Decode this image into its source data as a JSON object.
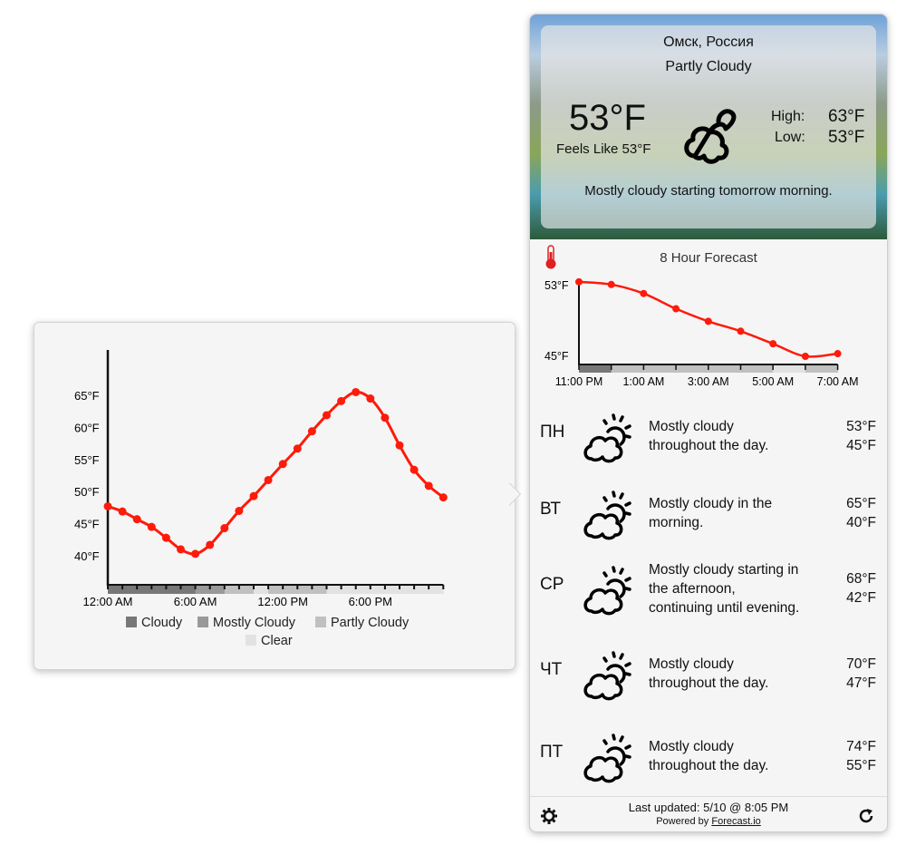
{
  "popover": {
    "chart_data": {
      "type": "line",
      "title": "",
      "xlabel": "",
      "ylabel": "",
      "x": [
        "12:00 AM",
        "1:00 AM",
        "2:00 AM",
        "3:00 AM",
        "4:00 AM",
        "5:00 AM",
        "6:00 AM",
        "7:00 AM",
        "8:00 AM",
        "9:00 AM",
        "10:00 AM",
        "11:00 AM",
        "12:00 PM",
        "1:00 PM",
        "2:00 PM",
        "3:00 PM",
        "4:00 PM",
        "5:00 PM",
        "6:00 PM",
        "7:00 PM",
        "8:00 PM",
        "9:00 PM",
        "10:00 PM",
        "11:00 PM"
      ],
      "values": [
        47.7,
        46.9,
        45.7,
        44.5,
        42.8,
        41.0,
        40.3,
        41.7,
        44.3,
        47.0,
        49.3,
        51.8,
        54.3,
        56.7,
        59.4,
        61.9,
        64.1,
        65.5,
        64.5,
        61.5,
        57.2,
        53.4,
        50.9,
        49.1
      ],
      "conditions": [
        "Cloudy",
        "Cloudy",
        "Cloudy",
        "Cloudy",
        "Cloudy",
        "Cloudy",
        "Mostly Cloudy",
        "Mostly Cloudy",
        "Partly Cloudy",
        "Partly Cloudy",
        "Clear",
        "Partly Cloudy",
        "Partly Cloudy",
        "Partly Cloudy",
        "Partly Cloudy",
        "Clear",
        "Clear",
        "Clear",
        "Clear",
        "Clear",
        "Clear",
        "Clear",
        "Clear",
        "Clear"
      ],
      "ylim": [
        35,
        70
      ],
      "yticks": [
        "40°F",
        "45°F",
        "50°F",
        "55°F",
        "60°F",
        "65°F"
      ],
      "xticks": [
        "12:00 AM",
        "6:00 AM",
        "12:00 PM",
        "6:00 PM"
      ],
      "line_color": "#ff1a0a",
      "legend": [
        "Cloudy",
        "Mostly Cloudy",
        "Partly Cloudy",
        "Clear"
      ],
      "legend_colors": {
        "Cloudy": "#777777",
        "Mostly Cloudy": "#999999",
        "Partly Cloudy": "#c0c0c0",
        "Clear": "#e2e2e2"
      },
      "legend_placement": "bottom"
    }
  },
  "current": {
    "location": "Омск, Россия",
    "summary": "Partly Cloudy",
    "temp": "53°F",
    "feels_like": "Feels Like 53°F",
    "high_label": "High:",
    "high": "63°F",
    "low_label": "Low:",
    "low": "53°F",
    "outlook": "Mostly cloudy starting tomorrow morning.",
    "icon": "partly-cloudy-icon"
  },
  "hourly": {
    "title": "8 Hour Forecast",
    "icon": "thermometer-icon",
    "chart_data": {
      "type": "line",
      "x": [
        "11:00 PM",
        "12:00 AM",
        "1:00 AM",
        "2:00 AM",
        "3:00 AM",
        "4:00 AM",
        "5:00 AM",
        "6:00 AM",
        "7:00 AM"
      ],
      "values": [
        53.3,
        53.0,
        52.0,
        50.3,
        48.9,
        47.8,
        46.4,
        45.0,
        45.3
      ],
      "conditions": [
        "Cloudy",
        "Partly Cloudy",
        "Partly Cloudy",
        "Partly Cloudy",
        "Partly Cloudy",
        "Partly Cloudy",
        "Clear",
        "Partly Cloudy",
        "Partly Cloudy"
      ],
      "yticks": [
        "45°F",
        "53°F"
      ],
      "xticks": [
        "11:00 PM",
        "1:00 AM",
        "3:00 AM",
        "5:00 AM",
        "7:00 AM"
      ],
      "line_color": "#ff1a0a"
    }
  },
  "daily": [
    {
      "day": "ПН",
      "summary": [
        "Mostly cloudy",
        "throughout the day."
      ],
      "high": "53°F",
      "low": "45°F"
    },
    {
      "day": "ВТ",
      "summary": [
        "Mostly cloudy in the",
        "morning."
      ],
      "high": "65°F",
      "low": "40°F"
    },
    {
      "day": "СР",
      "summary": [
        "Mostly cloudy starting in",
        "the afternoon,",
        "continuing until evening."
      ],
      "high": "68°F",
      "low": "42°F"
    },
    {
      "day": "ЧТ",
      "summary": [
        "Mostly cloudy",
        "throughout the day."
      ],
      "high": "70°F",
      "low": "47°F"
    },
    {
      "day": "ПТ",
      "summary": [
        "Mostly cloudy",
        "throughout the day."
      ],
      "high": "74°F",
      "low": "55°F"
    }
  ],
  "footer": {
    "last_updated": "Last updated: 5/10 @ 8:05 PM",
    "powered_by": "Powered by ",
    "link": "Forecast.io"
  }
}
